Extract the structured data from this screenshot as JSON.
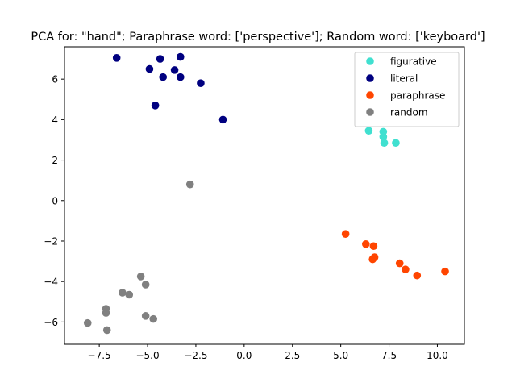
{
  "chart_data": {
    "type": "scatter",
    "title": "PCA for: \"hand\"; Paraphrase word: ['perspective']; Random word: ['keyboard']",
    "xlabel": "",
    "ylabel": "",
    "xlim": [
      -9.3,
      11.4
    ],
    "ylim": [
      -7.1,
      7.6
    ],
    "x_ticks": [
      -7.5,
      -5.0,
      -2.5,
      0.0,
      2.5,
      5.0,
      7.5,
      10.0
    ],
    "x_tick_labels": [
      "−7.5",
      "−5.0",
      "−2.5",
      "0.0",
      "2.5",
      "5.0",
      "7.5",
      "10.0"
    ],
    "y_ticks": [
      -6,
      -4,
      -2,
      0,
      2,
      4,
      6
    ],
    "y_tick_labels": [
      "−6",
      "−4",
      "−2",
      "0",
      "2",
      "4",
      "6"
    ],
    "grid": false,
    "legend_position": "top-right",
    "series": [
      {
        "name": "figurative",
        "color": "#40e0d0",
        "points": [
          [
            6.45,
            3.45
          ],
          [
            7.2,
            3.4
          ],
          [
            7.2,
            3.15
          ],
          [
            7.25,
            2.85
          ],
          [
            7.85,
            2.85
          ]
        ]
      },
      {
        "name": "literal",
        "color": "#000080",
        "points": [
          [
            -6.6,
            7.05
          ],
          [
            -4.35,
            7.0
          ],
          [
            -3.3,
            7.1
          ],
          [
            -4.9,
            6.5
          ],
          [
            -3.6,
            6.45
          ],
          [
            -4.2,
            6.1
          ],
          [
            -3.3,
            6.1
          ],
          [
            -2.25,
            5.8
          ],
          [
            -4.6,
            4.7
          ],
          [
            -1.1,
            4.0
          ]
        ]
      },
      {
        "name": "paraphrase",
        "color": "#ff4500",
        "points": [
          [
            5.25,
            -1.65
          ],
          [
            6.3,
            -2.15
          ],
          [
            6.7,
            -2.25
          ],
          [
            6.75,
            -2.8
          ],
          [
            6.65,
            -2.9
          ],
          [
            8.05,
            -3.1
          ],
          [
            8.35,
            -3.4
          ],
          [
            8.95,
            -3.7
          ],
          [
            10.4,
            -3.5
          ]
        ]
      },
      {
        "name": "random",
        "color": "#808080",
        "points": [
          [
            -2.8,
            0.8
          ],
          [
            -5.35,
            -3.75
          ],
          [
            -5.1,
            -4.15
          ],
          [
            -6.3,
            -4.55
          ],
          [
            -5.95,
            -4.65
          ],
          [
            -7.15,
            -5.35
          ],
          [
            -7.15,
            -5.55
          ],
          [
            -5.1,
            -5.7
          ],
          [
            -4.7,
            -5.85
          ],
          [
            -8.1,
            -6.05
          ],
          [
            -7.1,
            -6.4
          ]
        ]
      }
    ]
  }
}
